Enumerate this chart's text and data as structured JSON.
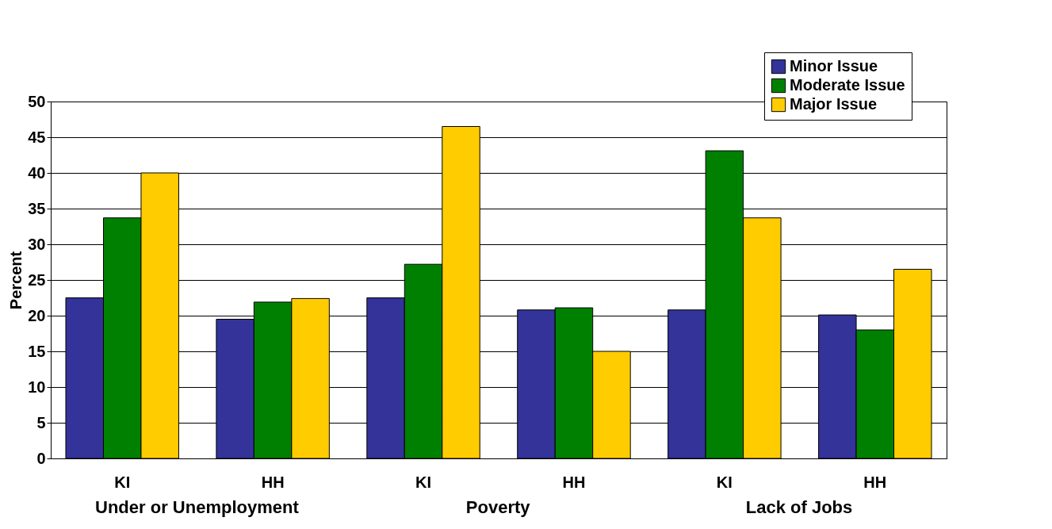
{
  "chart_data": {
    "type": "bar",
    "ylabel": "Percent",
    "categories": [
      "KI",
      "HH",
      "KI",
      "HH",
      "KI",
      "HH"
    ],
    "series": [
      {
        "name": "Minor Issue",
        "color": "#333399",
        "values": [
          22.5,
          19.5,
          22.5,
          20.8,
          20.8,
          20.1
        ]
      },
      {
        "name": "Moderate Issue",
        "color": "#008000",
        "values": [
          33.7,
          21.9,
          27.2,
          21.1,
          43.1,
          18.0
        ]
      },
      {
        "name": "Major Issue",
        "color": "#ffcc00",
        "values": [
          40.0,
          22.4,
          46.5,
          15.0,
          33.7,
          26.5
        ]
      }
    ],
    "ylim": [
      0,
      50
    ],
    "yticks": [
      0,
      5,
      10,
      15,
      20,
      25,
      30,
      35,
      40,
      45,
      50
    ],
    "annotations": [
      "Under or Unemployment",
      "Poverty",
      "Lack of Jobs"
    ],
    "grid": "y",
    "legend": "top right"
  }
}
